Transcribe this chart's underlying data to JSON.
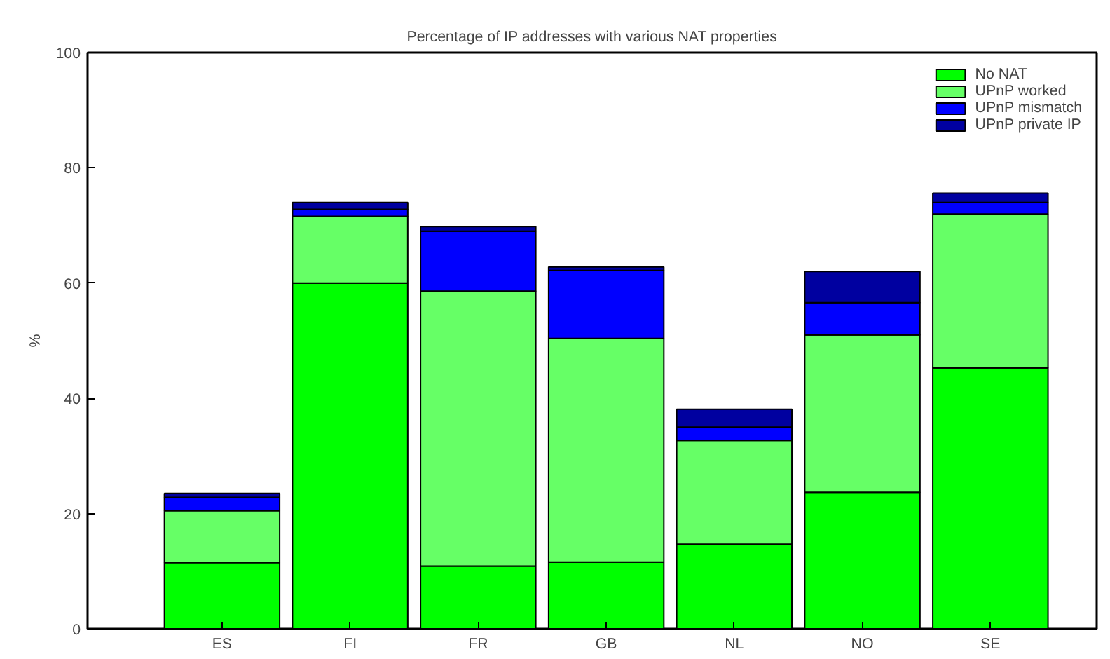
{
  "chart_data": {
    "type": "bar",
    "title": "Percentage of IP addresses with various NAT properties",
    "ylabel": "%",
    "categories": [
      "ES",
      "FI",
      "FR",
      "GB",
      "NL",
      "NO",
      "SE"
    ],
    "stacked": true,
    "series": [
      {
        "name": "No NAT",
        "color": "#00ff00",
        "values": [
          11.5,
          60.0,
          10.9,
          11.6,
          14.7,
          23.7,
          45.3
        ]
      },
      {
        "name": "UPnP worked",
        "color": "#66ff66",
        "values": [
          9.0,
          11.6,
          47.7,
          38.8,
          18.0,
          27.3,
          26.7
        ]
      },
      {
        "name": "UPnP mismatch",
        "color": "#0000ff",
        "values": [
          2.3,
          1.2,
          10.4,
          11.8,
          2.3,
          5.6,
          2.0
        ]
      },
      {
        "name": "UPnP private IP",
        "color": "#0000a0",
        "values": [
          0.7,
          1.2,
          0.8,
          0.6,
          3.1,
          5.4,
          1.6
        ]
      }
    ],
    "ylim": [
      0,
      100
    ],
    "yticks": [
      0,
      20,
      40,
      60,
      80,
      100
    ],
    "grid": false,
    "legend": "top right"
  }
}
